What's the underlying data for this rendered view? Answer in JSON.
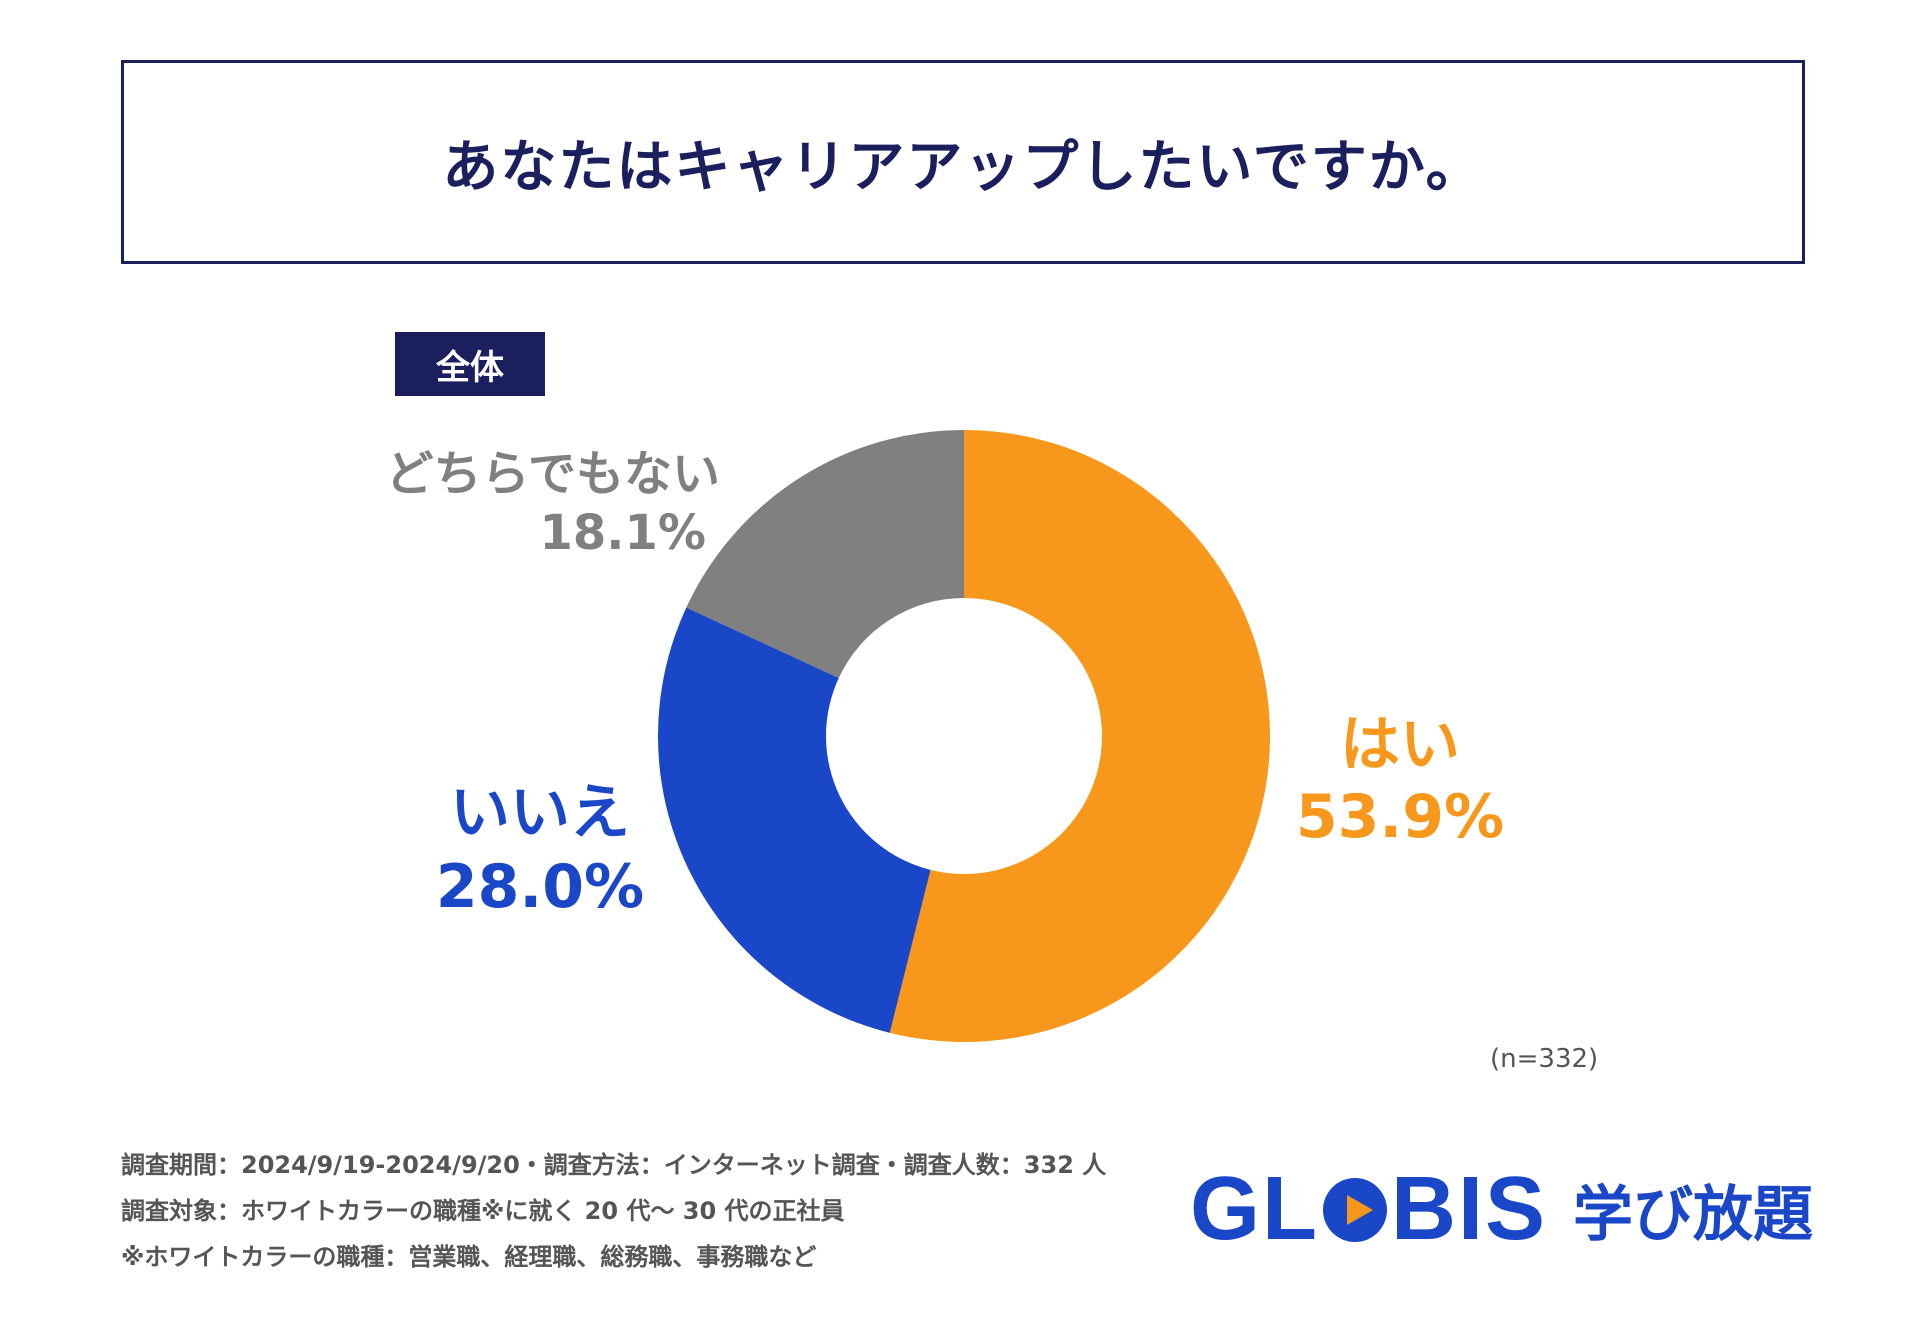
{
  "title": "あなたはキャリアアップしたいですか。",
  "badge": "全体",
  "chart_data": {
    "type": "pie",
    "categories": [
      "はい",
      "いいえ",
      "どちらでもない"
    ],
    "values": [
      53.9,
      28.0,
      18.1
    ],
    "value_labels": [
      "53.9%",
      "28.0%",
      "18.1%"
    ],
    "colors": [
      "#f7981d",
      "#1a47c8",
      "#808080"
    ],
    "donut": true
  },
  "sample_size": "(n=332)",
  "footnotes": [
    "調査期間：2024/9/19-2024/9/20・調査方法：インターネット調査・調査人数：332 人",
    "調査対象：ホワイトカラーの職種※に就く 20 代〜 30 代の正社員",
    "※ホワイトカラーの職種：営業職、経理職、総務職、事務職など"
  ],
  "logo": {
    "brand_left": "GL",
    "brand_right": "BIS",
    "subtitle": "学び放題"
  }
}
